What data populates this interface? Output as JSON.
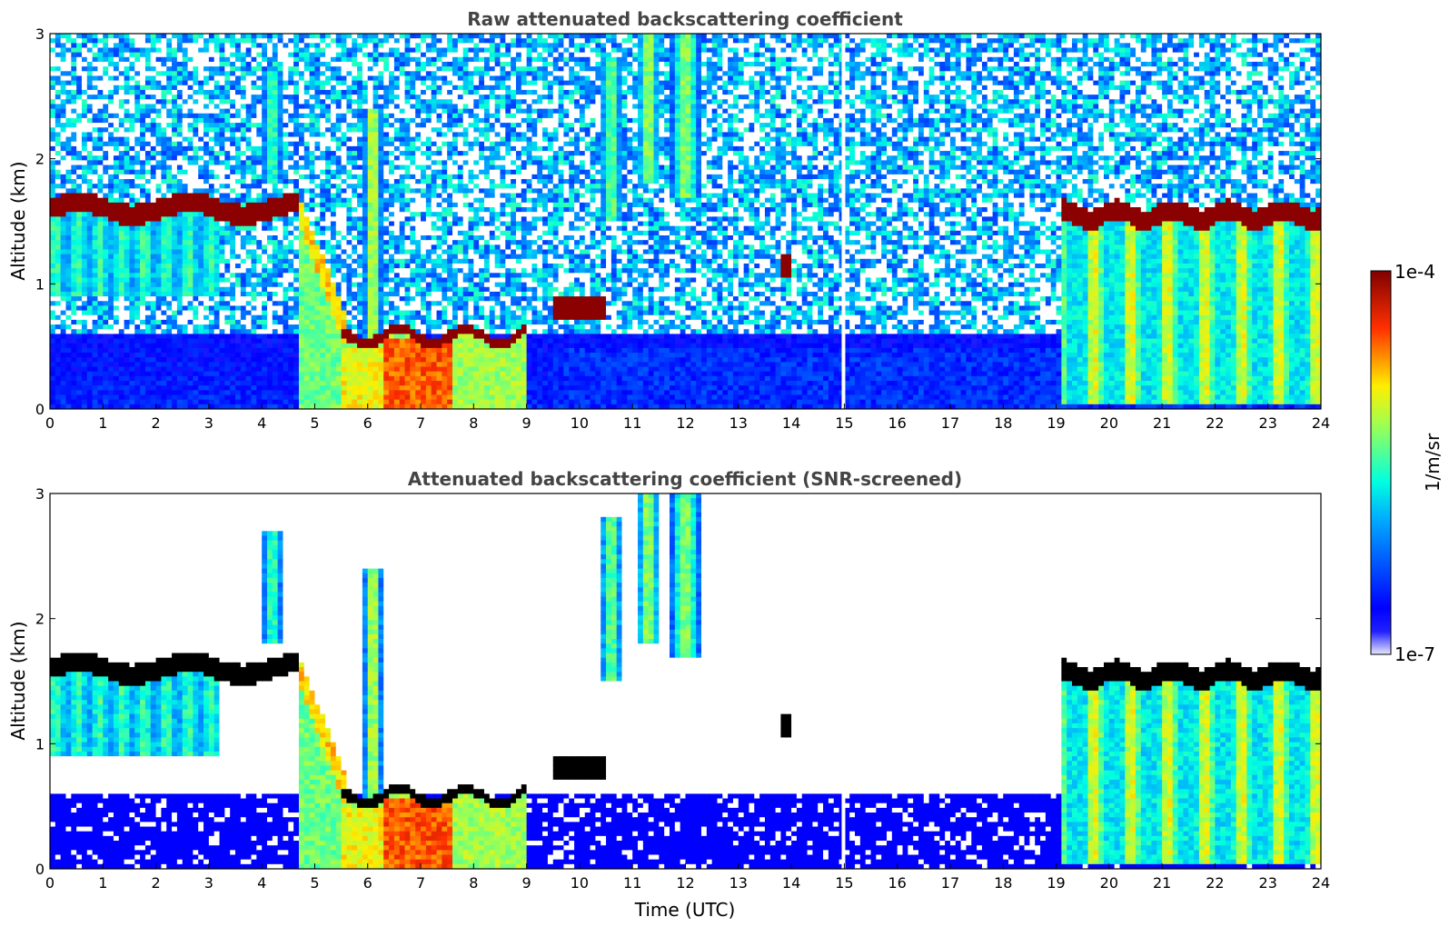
{
  "chart_data": [
    {
      "type": "heatmap",
      "title": "Raw attenuated backscattering coefficient",
      "xlabel": "",
      "ylabel": "Altitude (km)",
      "xlim": [
        0,
        24
      ],
      "ylim": [
        0,
        3
      ],
      "xticks": [
        "0",
        "1",
        "2",
        "3",
        "4",
        "5",
        "6",
        "7",
        "8",
        "9",
        "10",
        "11",
        "12",
        "13",
        "14",
        "15",
        "16",
        "17",
        "18",
        "19",
        "20",
        "21",
        "22",
        "23",
        "24"
      ],
      "yticks": [
        "0",
        "1",
        "2",
        "3"
      ],
      "features": [
        {
          "name": "cloud_layer_morning",
          "x_range": [
            0,
            4.7
          ],
          "altitude_km": 1.6
        },
        {
          "name": "descending_layer",
          "x_range": [
            4.7,
            5.5
          ],
          "altitude_km": [
            1.6,
            0.6
          ]
        },
        {
          "name": "low_cloud",
          "x_range": [
            5.5,
            9.0
          ],
          "altitude_km": 0.55
        },
        {
          "name": "intense_aerosol_near_surface",
          "x_range": [
            6.4,
            7.6
          ],
          "altitude_km": [
            0,
            0.5
          ]
        },
        {
          "name": "cloud_layer_evening",
          "x_range": [
            19.1,
            24
          ],
          "altitude_km": 1.55
        },
        {
          "name": "data_gap",
          "x": 14.95
        }
      ]
    },
    {
      "type": "heatmap",
      "title": "Attenuated backscattering coefficient (SNR-screened)",
      "xlabel": "Time (UTC)",
      "ylabel": "Altitude (km)",
      "xlim": [
        0,
        24
      ],
      "ylim": [
        0,
        3
      ],
      "xticks": [
        "0",
        "1",
        "2",
        "3",
        "4",
        "5",
        "6",
        "7",
        "8",
        "9",
        "10",
        "11",
        "12",
        "13",
        "14",
        "15",
        "16",
        "17",
        "18",
        "19",
        "20",
        "21",
        "22",
        "23",
        "24"
      ],
      "yticks": [
        "0",
        "1",
        "2",
        "3"
      ],
      "screened_color": "#000000",
      "features": [
        {
          "name": "cloud_layer_morning",
          "x_range": [
            0,
            4.7
          ],
          "altitude_km": 1.6
        },
        {
          "name": "low_cloud",
          "x_range": [
            5.5,
            9.0
          ],
          "altitude_km": 0.55
        },
        {
          "name": "cloud_layer_evening",
          "x_range": [
            19.1,
            24
          ],
          "altitude_km": 1.55
        }
      ]
    }
  ],
  "colorbar": {
    "label": "1/m/sr",
    "max_label": "1e-4",
    "min_label": "1e-7",
    "scale": "log",
    "colormap": "jet",
    "colors": [
      "#e6e6ff",
      "#0000ff",
      "#00ffff",
      "#ffff00",
      "#ff0000",
      "#800000"
    ]
  }
}
